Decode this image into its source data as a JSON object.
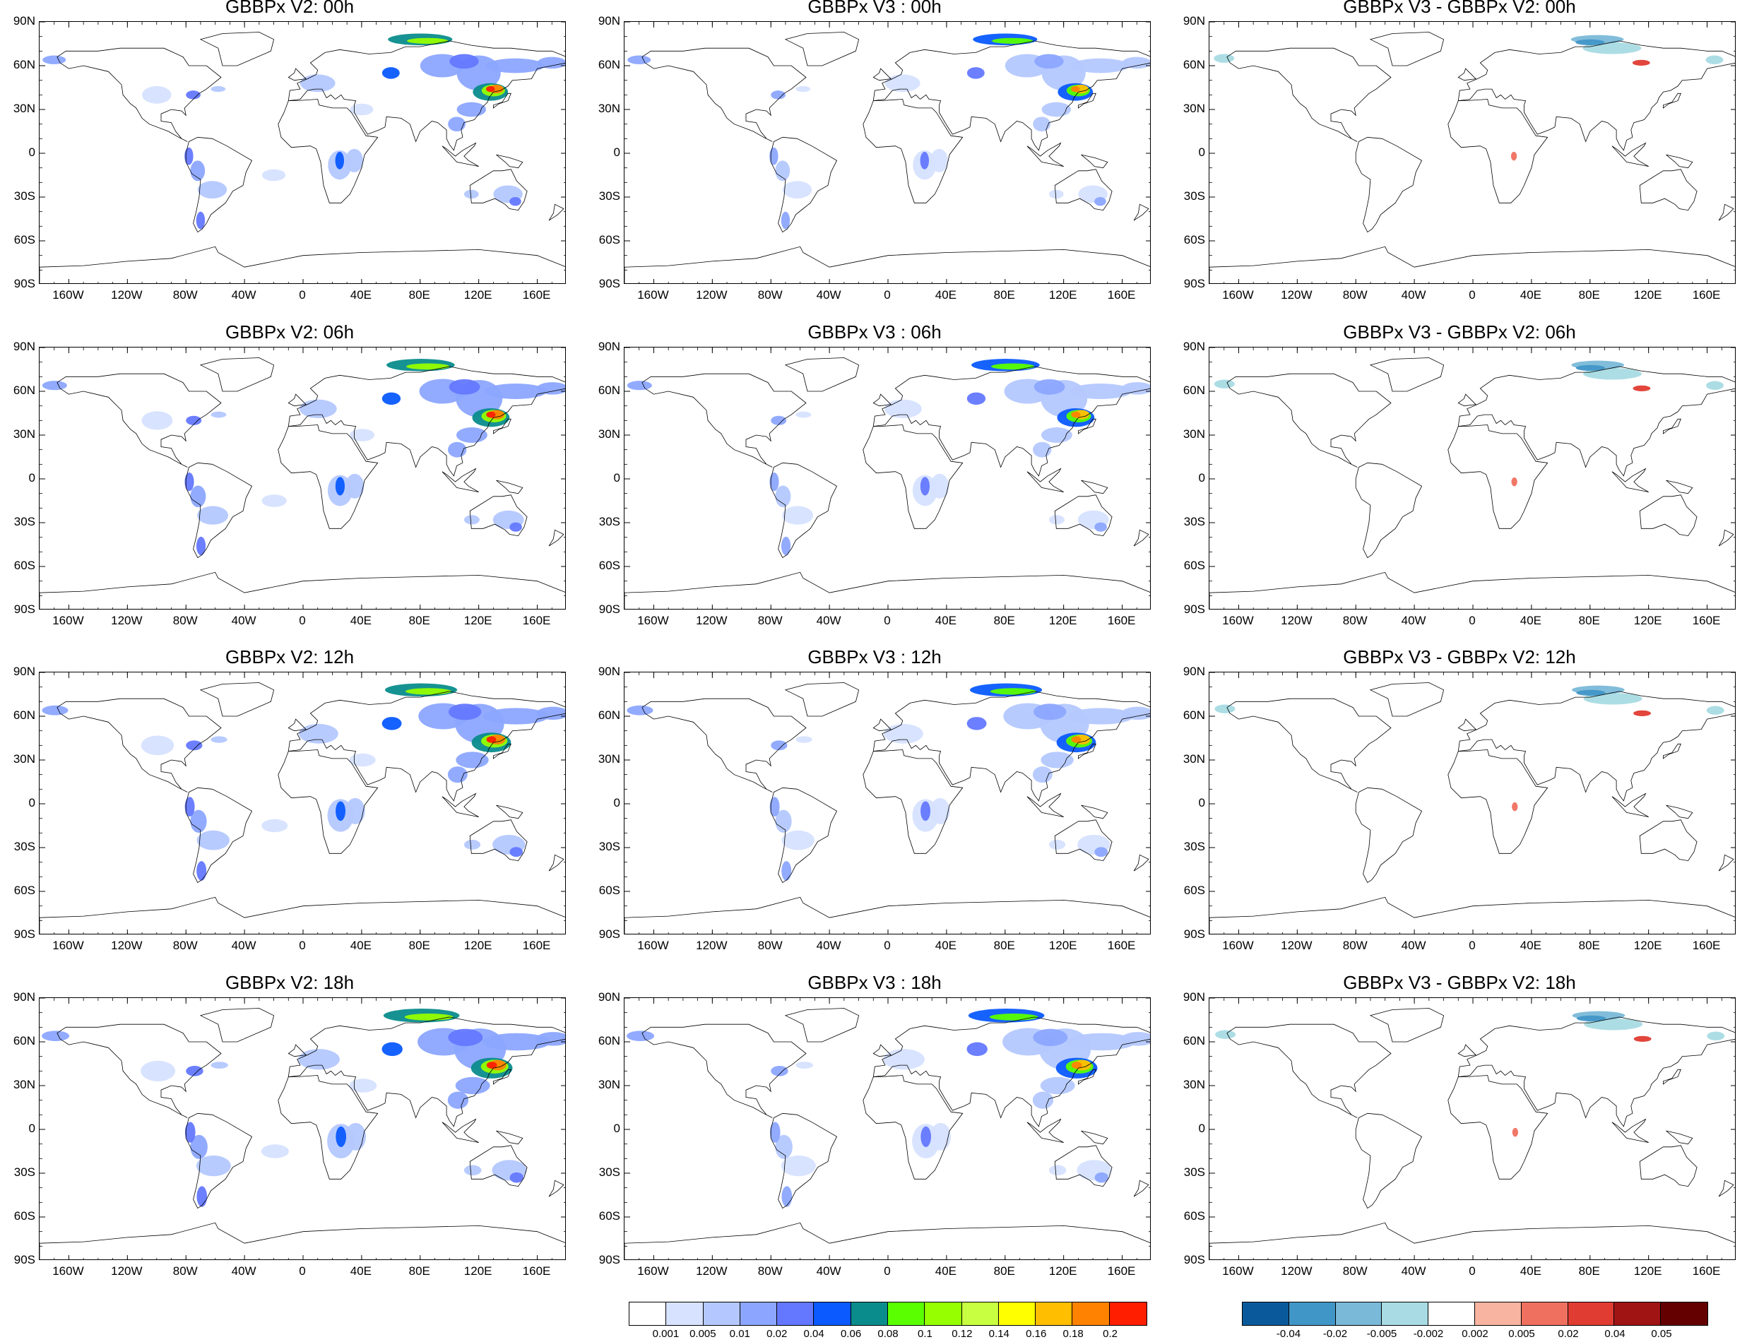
{
  "panels": [
    {
      "title": "GBBPx V2: 00h",
      "kind": "abs",
      "hour": 0
    },
    {
      "title": "GBBPx V3 : 00h",
      "kind": "abs",
      "hour": 0
    },
    {
      "title": "GBBPx V3 - GBBPx V2: 00h",
      "kind": "diff",
      "hour": 0
    },
    {
      "title": "GBBPx V2: 06h",
      "kind": "abs",
      "hour": 6
    },
    {
      "title": "GBBPx V3 : 06h",
      "kind": "abs",
      "hour": 6
    },
    {
      "title": "GBBPx V3 - GBBPx V2: 06h",
      "kind": "diff",
      "hour": 6
    },
    {
      "title": "GBBPx V2: 12h",
      "kind": "abs",
      "hour": 12
    },
    {
      "title": "GBBPx V3 : 12h",
      "kind": "abs",
      "hour": 12
    },
    {
      "title": "GBBPx V3 - GBBPx V2: 12h",
      "kind": "diff",
      "hour": 12
    },
    {
      "title": "GBBPx V2: 18h",
      "kind": "abs",
      "hour": 18
    },
    {
      "title": "GBBPx V3 : 18h",
      "kind": "abs",
      "hour": 18
    },
    {
      "title": "GBBPx V3 - GBBPx V2: 18h",
      "kind": "diff",
      "hour": 18
    }
  ],
  "lat_ticks": [
    "90N",
    "60N",
    "30N",
    "0",
    "30S",
    "60S",
    "90S"
  ],
  "lon_ticks": [
    "160W",
    "120W",
    "80W",
    "40W",
    "0",
    "40E",
    "80E",
    "120E",
    "160E"
  ],
  "legend_abs": {
    "labels": [
      "0.001",
      "0.005",
      "0.01",
      "0.02",
      "0.04",
      "0.06",
      "0.08",
      "0.1",
      "0.12",
      "0.14",
      "0.16",
      "0.18",
      "0.2"
    ],
    "colors": [
      "#ffffff",
      "#d6e2ff",
      "#b4c8ff",
      "#8ca6ff",
      "#6478ff",
      "#0a5aff",
      "#0a8c8c",
      "#5aff00",
      "#96ff00",
      "#c8ff40",
      "#ffff00",
      "#ffbe00",
      "#ff8200",
      "#ff1e00"
    ]
  },
  "legend_diff": {
    "labels": [
      "-0.04",
      "-0.02",
      "-0.005",
      "-0.002",
      "0.002",
      "0.005",
      "0.02",
      "0.04",
      "0.05"
    ],
    "colors": [
      "#0a5a9b",
      "#4196c8",
      "#7ab9d8",
      "#a8dbe3",
      "#ffffff",
      "#f8b4a0",
      "#f07060",
      "#e03c32",
      "#a01414",
      "#640000"
    ]
  }
}
